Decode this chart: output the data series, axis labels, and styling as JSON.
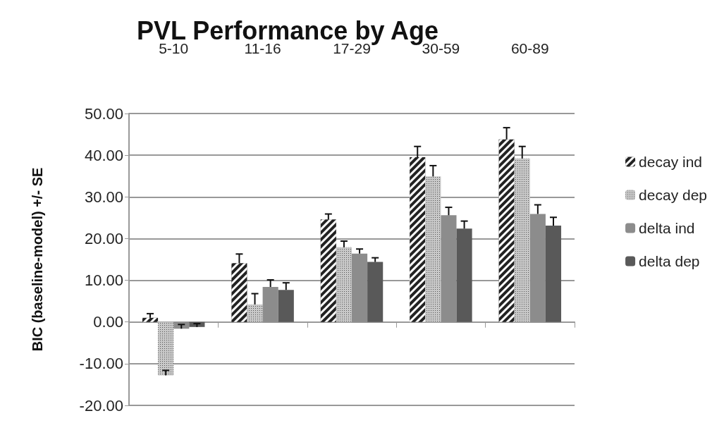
{
  "chart_data": {
    "type": "bar",
    "title": "PVL Performance by Age",
    "ylabel": "BIC (baseline-model) +/- SE",
    "categories": [
      "5-10",
      "11-16",
      "17-29",
      "30-59",
      "60-89"
    ],
    "series": [
      {
        "name": "decay ind",
        "color": "#222222",
        "values": [
          1.0,
          14.1,
          24.6,
          39.5,
          43.8
        ],
        "errors": [
          [
            1.0,
            2.0
          ],
          [
            14.1,
            16.3
          ],
          [
            24.6,
            25.9
          ],
          [
            39.5,
            42.1
          ],
          [
            43.8,
            46.6
          ]
        ]
      },
      {
        "name": "decay dep",
        "color": "#c8c8c8",
        "values": [
          -12.8,
          4.2,
          17.9,
          34.9,
          39.2
        ],
        "errors": [
          [
            -12.8,
            -11.6
          ],
          [
            4.2,
            6.8
          ],
          [
            17.9,
            19.4
          ],
          [
            34.9,
            37.5
          ],
          [
            39.2,
            42.1
          ]
        ]
      },
      {
        "name": "delta ind",
        "color": "#8c8c8c",
        "values": [
          -1.6,
          8.4,
          16.4,
          25.6,
          25.9
        ],
        "errors": [
          [
            -1.6,
            -0.6
          ],
          [
            8.4,
            10.1
          ],
          [
            16.4,
            17.5
          ],
          [
            25.6,
            27.5
          ],
          [
            25.9,
            28.1
          ]
        ]
      },
      {
        "name": "delta dep",
        "color": "#595959",
        "values": [
          -1.2,
          7.7,
          14.4,
          22.4,
          23.1
        ],
        "errors": [
          [
            -1.2,
            -0.4
          ],
          [
            7.7,
            9.4
          ],
          [
            14.4,
            15.4
          ],
          [
            22.4,
            24.2
          ],
          [
            23.1,
            25.1
          ]
        ]
      }
    ],
    "ylim": [
      -20,
      50
    ],
    "yticks": [
      {
        "value": -20,
        "label": "-20.00"
      },
      {
        "value": -10,
        "label": "-10.00"
      },
      {
        "value": 0,
        "label": "0.00"
      },
      {
        "value": 10,
        "label": "10.00"
      },
      {
        "value": 20,
        "label": "20.00"
      },
      {
        "value": 30,
        "label": "30.00"
      },
      {
        "value": 40,
        "label": "40.00"
      },
      {
        "value": 50,
        "label": "50.00"
      }
    ],
    "grid": "y",
    "legend": "right"
  }
}
